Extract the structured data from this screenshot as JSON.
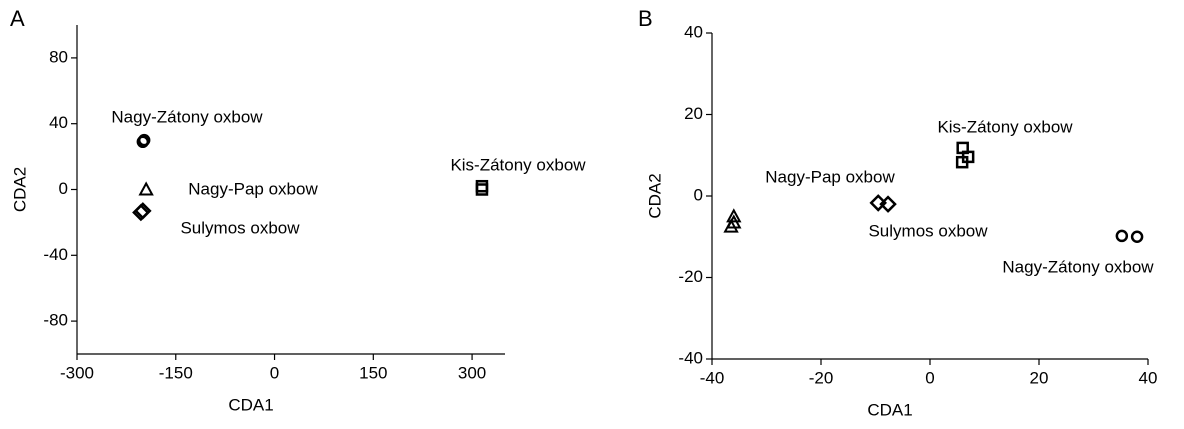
{
  "chart_data": [
    {
      "type": "scatter",
      "panel": "A",
      "xlabel": "CDA1",
      "ylabel": "CDA2",
      "xlim": [
        -300,
        350
      ],
      "ylim": [
        -100,
        100
      ],
      "xticks": [
        -300,
        -150,
        0,
        150,
        300
      ],
      "yticks": [
        -80,
        -40,
        0,
        40,
        80
      ],
      "series": [
        {
          "name": "Nagy-Zátony oxbow",
          "marker": "circle",
          "color": "#000000",
          "x": [
            -200,
            -198
          ],
          "y": [
            29,
            30
          ]
        },
        {
          "name": "Nagy-Pap oxbow",
          "marker": "triangle",
          "color": "#000000",
          "x": [
            -195
          ],
          "y": [
            0
          ]
        },
        {
          "name": "Sulymos oxbow",
          "marker": "diamond",
          "color": "#000000",
          "x": [
            -203,
            -200
          ],
          "y": [
            -14,
            -13
          ]
        },
        {
          "name": "Kis-Zátony oxbow",
          "marker": "square",
          "color": "#000000",
          "x": [
            315,
            315
          ],
          "y": [
            2,
            0
          ]
        }
      ]
    },
    {
      "type": "scatter",
      "panel": "B",
      "xlabel": "CDA1",
      "ylabel": "CDA2",
      "xlim": [
        -40,
        40
      ],
      "ylim": [
        -40,
        40
      ],
      "xticks": [
        -40,
        -20,
        0,
        20,
        40
      ],
      "yticks": [
        -40,
        -20,
        0,
        20,
        40
      ],
      "series": [
        {
          "name": "Kis-Zátony oxbow",
          "marker": "square",
          "color": "#000000",
          "x": [
            6,
            5.9,
            7
          ],
          "y": [
            11.8,
            8.3,
            9.6
          ]
        },
        {
          "name": "Nagy-Pap oxbow",
          "marker": "triangle",
          "color": "#000000",
          "x": [
            -36,
            -36,
            -36.5
          ],
          "y": [
            -5,
            -6.5,
            -7.5
          ]
        },
        {
          "name": "Sulymos oxbow",
          "marker": "diamond",
          "color": "#000000",
          "x": [
            -9.5,
            -7.7
          ],
          "y": [
            -1.7,
            -2
          ]
        },
        {
          "name": "Nagy-Zátony oxbow",
          "marker": "circle",
          "color": "#000000",
          "x": [
            35.2,
            38
          ],
          "y": [
            -9.8,
            -10
          ]
        }
      ]
    }
  ]
}
